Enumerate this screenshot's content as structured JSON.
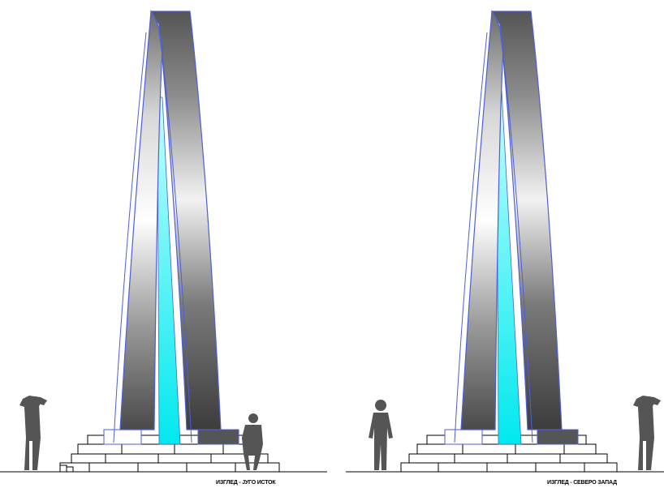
{
  "drawings": [
    {
      "caption": "ИЗГЛЕД - ЈУГО ИСТОК"
    },
    {
      "caption": "ИЗГЛЕД - СЕВЕРО ЗАПАД"
    }
  ],
  "colors": {
    "outline": "#4d5fd6",
    "core": "#00f0f0",
    "figure": "#555555",
    "ground": "#000000",
    "shade_dark": "#4a4a4a",
    "shade_light": "#ffffff"
  },
  "icons": [
    "person-silhouette-icon",
    "photographer-silhouette-icon",
    "seated-person-icon"
  ]
}
